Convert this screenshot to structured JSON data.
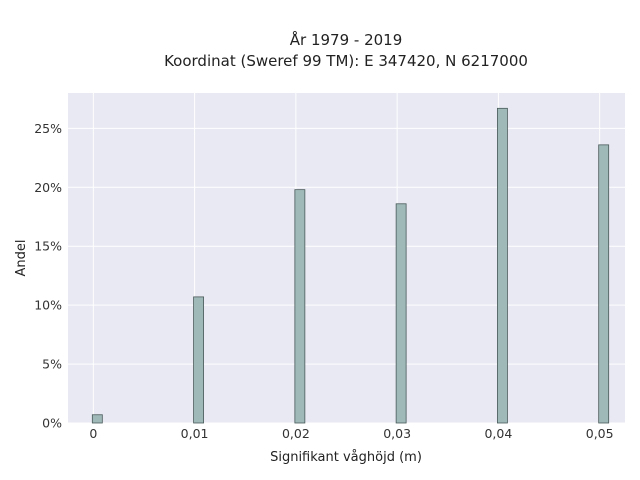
{
  "chart_data": {
    "type": "bar",
    "title_line1": "År 1979 - 2019",
    "title_line2": "Koordinat (Sweref 99 TM): E 347420, N 6217000",
    "xlabel": "Signifikant våghöjd (m)",
    "ylabel": "Andel",
    "x": [
      0,
      0.01,
      0.02,
      0.03,
      0.04,
      0.05
    ],
    "x_tick_labels": [
      "0",
      "0,01",
      "0,02",
      "0,03",
      "0,04",
      "0,05"
    ],
    "values": [
      0.7,
      10.7,
      19.8,
      18.6,
      26.7,
      23.6
    ],
    "y_ticks": [
      0,
      5,
      10,
      15,
      20,
      25
    ],
    "y_tick_labels": [
      "0%",
      "5%",
      "10%",
      "15%",
      "20%",
      "25%"
    ],
    "xlim": [
      -0.0025,
      0.0525
    ],
    "ylim": [
      0,
      28
    ],
    "grid": true,
    "colors": {
      "bar_fill": "#9fb8b8",
      "bar_edge": "#4a5a5a",
      "plot_bg": "#e8e9f2",
      "grid": "#ffffff"
    }
  }
}
